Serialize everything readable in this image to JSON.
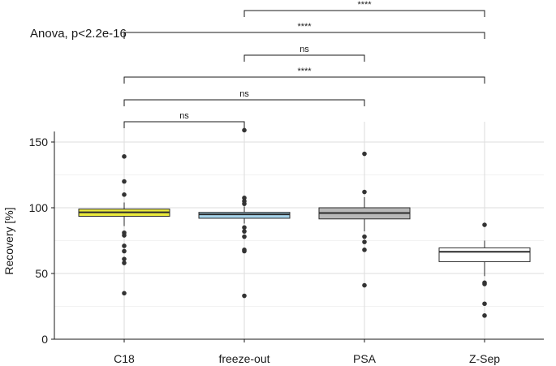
{
  "chart_data": {
    "type": "boxplot",
    "ylabel": "Recovery [%]",
    "xlabel": "",
    "ylim": [
      0,
      160
    ],
    "yticks": [
      0,
      50,
      100,
      150
    ],
    "stat_label": "Anova, p<2.2e-16",
    "categories": [
      "C18",
      "freeze-out",
      "PSA",
      "Z-Sep"
    ],
    "series": [
      {
        "name": "C18",
        "fill": "#e9e93c",
        "q1": 93.5,
        "median": 96.5,
        "q3": 99,
        "whisker_low": 86,
        "whisker_high": 104,
        "outliers": [
          139,
          120,
          110,
          81,
          79,
          71,
          67,
          61,
          58,
          35
        ]
      },
      {
        "name": "freeze-out",
        "fill": "#a6d4ea",
        "q1": 92,
        "median": 95,
        "q3": 96.5,
        "whisker_low": 88,
        "whisker_high": 101,
        "outliers": [
          159,
          107.5,
          105,
          103,
          85,
          82,
          78,
          68,
          67,
          33
        ]
      },
      {
        "name": "PSA",
        "fill": "#b8b8b8",
        "q1": 91.5,
        "median": 96,
        "q3": 100,
        "whisker_low": 82,
        "whisker_high": 108,
        "outliers": [
          141,
          112,
          78,
          74,
          68,
          41
        ]
      },
      {
        "name": "Z-Sep",
        "fill": "#ffffff",
        "q1": 59,
        "median": 66.5,
        "q3": 69.5,
        "whisker_low": 48,
        "whisker_high": 75,
        "outliers": [
          87,
          43,
          42,
          27,
          18
        ]
      }
    ],
    "comparisons": [
      {
        "from": "freeze-out",
        "to": "Z-Sep",
        "label": "****"
      },
      {
        "from": "C18",
        "to": "Z-Sep",
        "label": "****"
      },
      {
        "from": "freeze-out",
        "to": "PSA",
        "label": "ns"
      },
      {
        "from": "C18",
        "to": "Z-Sep",
        "label": "****"
      },
      {
        "from": "C18",
        "to": "PSA",
        "label": "ns"
      },
      {
        "from": "C18",
        "to": "freeze-out",
        "label": "ns"
      }
    ]
  }
}
